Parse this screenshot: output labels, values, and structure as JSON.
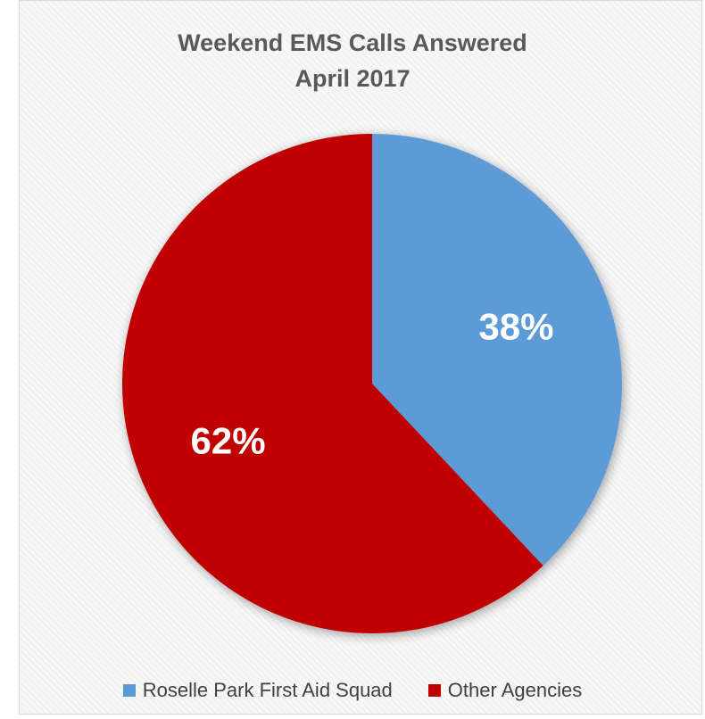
{
  "chart_data": {
    "type": "pie",
    "title": [
      "Weekend EMS Calls Answered",
      "April 2017"
    ],
    "categories": [
      "Roselle Park First Aid Squad",
      "Other Agencies"
    ],
    "values": [
      38,
      62
    ],
    "labels": [
      "38%",
      "62%"
    ],
    "colors": [
      "#5b9bd5",
      "#c00000"
    ],
    "label_color": "#ffffff",
    "start_angle": "12 o'clock, clockwise",
    "legend_position": "bottom"
  }
}
